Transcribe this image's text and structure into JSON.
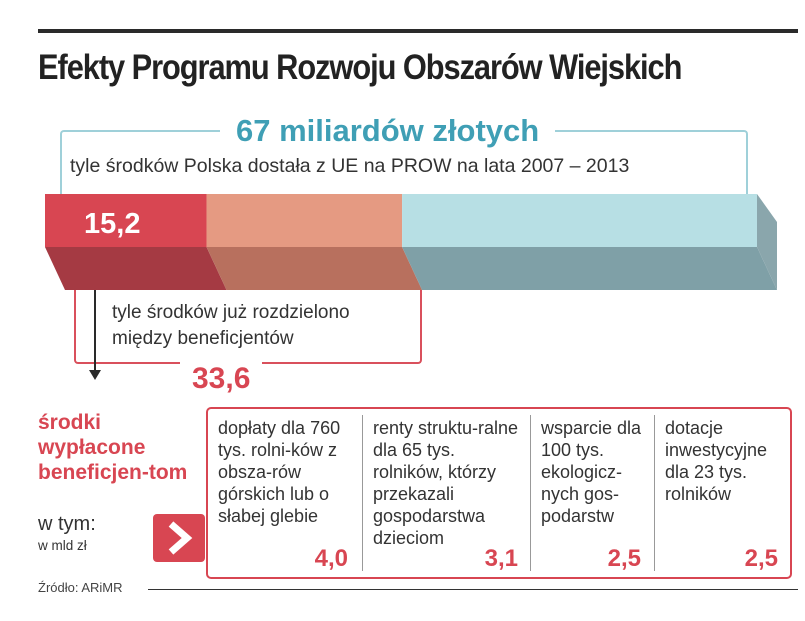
{
  "title": "Efekty Programu Rozwoju Obszarów Wiejskich",
  "total": {
    "value_label": "67 miliardów złotych",
    "description": "tyle środków Polska dostała z UE na PROW na lata 2007 – 2013"
  },
  "distributed": {
    "description": "tyle środków już rozdzielono między beneficjentów",
    "value_label": "33,6"
  },
  "paid": {
    "label": "środki wypłacone beneficjen-tom",
    "including": "w tym:",
    "unit": "w mld zł",
    "value_label": "15,2"
  },
  "items": [
    {
      "text": "dopłaty dla 760 tys. rolni-ków z obsza-rów górskich lub o słabej glebie",
      "value": "4,0"
    },
    {
      "text": "renty struktu-ralne dla 65 tys. rolników, którzy przekazali gospodarstwa dzieciom",
      "value": "3,1"
    },
    {
      "text": "wsparcie dla 100 tys. ekologicz-nych gos-podarstw",
      "value": "2,5"
    },
    {
      "text": "dotacje inwestycyjne dla 23 tys. rolników",
      "value": "2,5"
    }
  ],
  "source": "Źródło: ARiMR",
  "colors": {
    "paid": "#d84652",
    "distributed": "#e59a82",
    "total": "#b7dfe4",
    "accent_blue": "#3f9fb5"
  },
  "chart_data": {
    "type": "bar",
    "orientation": "horizontal-stacked",
    "unit": "mld zł",
    "total": 67,
    "values": [
      {
        "label": "środki wypłacone beneficjentom",
        "value": 15.2
      },
      {
        "label": "tyle środków już rozdzielono między beneficjentów",
        "value": 33.6
      },
      {
        "label": "tyle środków Polska dostała z UE na PROW na lata 2007 – 2013",
        "value": 67
      }
    ],
    "breakdown": [
      {
        "category": "dopłaty dla 760 tys. rolników z obszarów górskich lub o słabej glebie",
        "value": 4.0
      },
      {
        "category": "renty strukturalne dla 65 tys. rolników, którzy przekazali gospodarstwa dzieciom",
        "value": 3.1
      },
      {
        "category": "wsparcie dla 100 tys. ekologicznych gospodarstw",
        "value": 2.5
      },
      {
        "category": "dotacje inwestycyjne dla 23 tys. rolników",
        "value": 2.5
      }
    ]
  }
}
